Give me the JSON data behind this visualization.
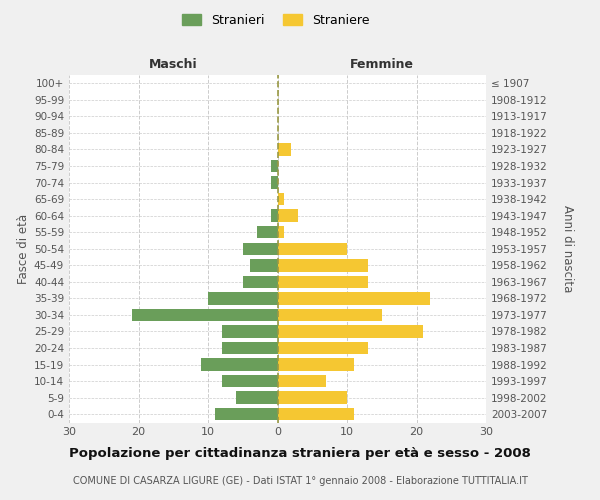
{
  "age_groups": [
    "100+",
    "95-99",
    "90-94",
    "85-89",
    "80-84",
    "75-79",
    "70-74",
    "65-69",
    "60-64",
    "55-59",
    "50-54",
    "45-49",
    "40-44",
    "35-39",
    "30-34",
    "25-29",
    "20-24",
    "15-19",
    "10-14",
    "5-9",
    "0-4"
  ],
  "birth_years": [
    "≤ 1907",
    "1908-1912",
    "1913-1917",
    "1918-1922",
    "1923-1927",
    "1928-1932",
    "1933-1937",
    "1938-1942",
    "1943-1947",
    "1948-1952",
    "1953-1957",
    "1958-1962",
    "1963-1967",
    "1968-1972",
    "1973-1977",
    "1978-1982",
    "1983-1987",
    "1988-1992",
    "1993-1997",
    "1998-2002",
    "2003-2007"
  ],
  "males": [
    0,
    0,
    0,
    0,
    0,
    1,
    1,
    0,
    1,
    3,
    5,
    4,
    5,
    10,
    21,
    8,
    8,
    11,
    8,
    6,
    9
  ],
  "females": [
    0,
    0,
    0,
    0,
    2,
    0,
    0,
    1,
    3,
    1,
    10,
    13,
    13,
    22,
    15,
    21,
    13,
    11,
    7,
    10,
    11
  ],
  "male_color": "#6a9e5a",
  "female_color": "#f5c732",
  "title": "Popolazione per cittadinanza straniera per età e sesso - 2008",
  "subtitle": "COMUNE DI CASARZA LIGURE (GE) - Dati ISTAT 1° gennaio 2008 - Elaborazione TUTTITALIA.IT",
  "xlabel_left": "Maschi",
  "xlabel_right": "Femmine",
  "ylabel_left": "Fasce di età",
  "ylabel_right": "Anni di nascita",
  "legend_male": "Stranieri",
  "legend_female": "Straniere",
  "xlim": 30,
  "background_color": "#f0f0f0",
  "plot_bg_color": "#ffffff",
  "grid_color": "#cccccc",
  "dashed_line_color": "#999944"
}
